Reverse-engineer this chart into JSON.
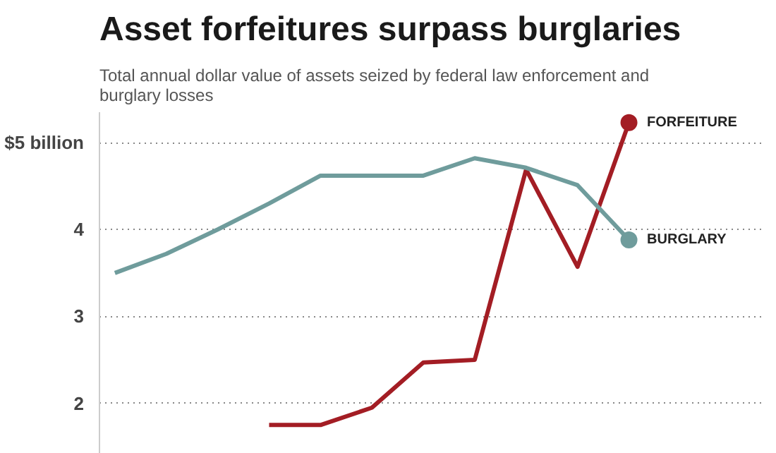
{
  "chart_data": {
    "type": "line",
    "title": "Asset forfeitures surpass burglaries",
    "subtitle": "Total annual dollar value of assets seized by federal law enforcement and burglary losses",
    "categories": [
      null,
      null,
      null,
      null,
      null,
      null,
      null,
      null,
      null,
      null,
      null
    ],
    "series": [
      {
        "name": "FORFEITURE",
        "color": "#a31d24",
        "values": [
          null,
          null,
          null,
          1.75,
          1.75,
          1.95,
          2.47,
          2.5,
          4.69,
          3.57,
          5.23
        ]
      },
      {
        "name": "BURGLARY",
        "color": "#6f9c9c",
        "values": [
          3.5,
          3.72,
          4.0,
          4.3,
          4.62,
          4.62,
          4.62,
          4.82,
          4.71,
          4.51,
          3.88
        ]
      }
    ],
    "ylim": [
      1.42,
      5.35
    ],
    "yticks": [
      {
        "value": 5,
        "label": "$5 billion"
      },
      4,
      3,
      2
    ],
    "grid": "y",
    "tick_labels": "y",
    "marker": "none",
    "line_style": "solid"
  }
}
